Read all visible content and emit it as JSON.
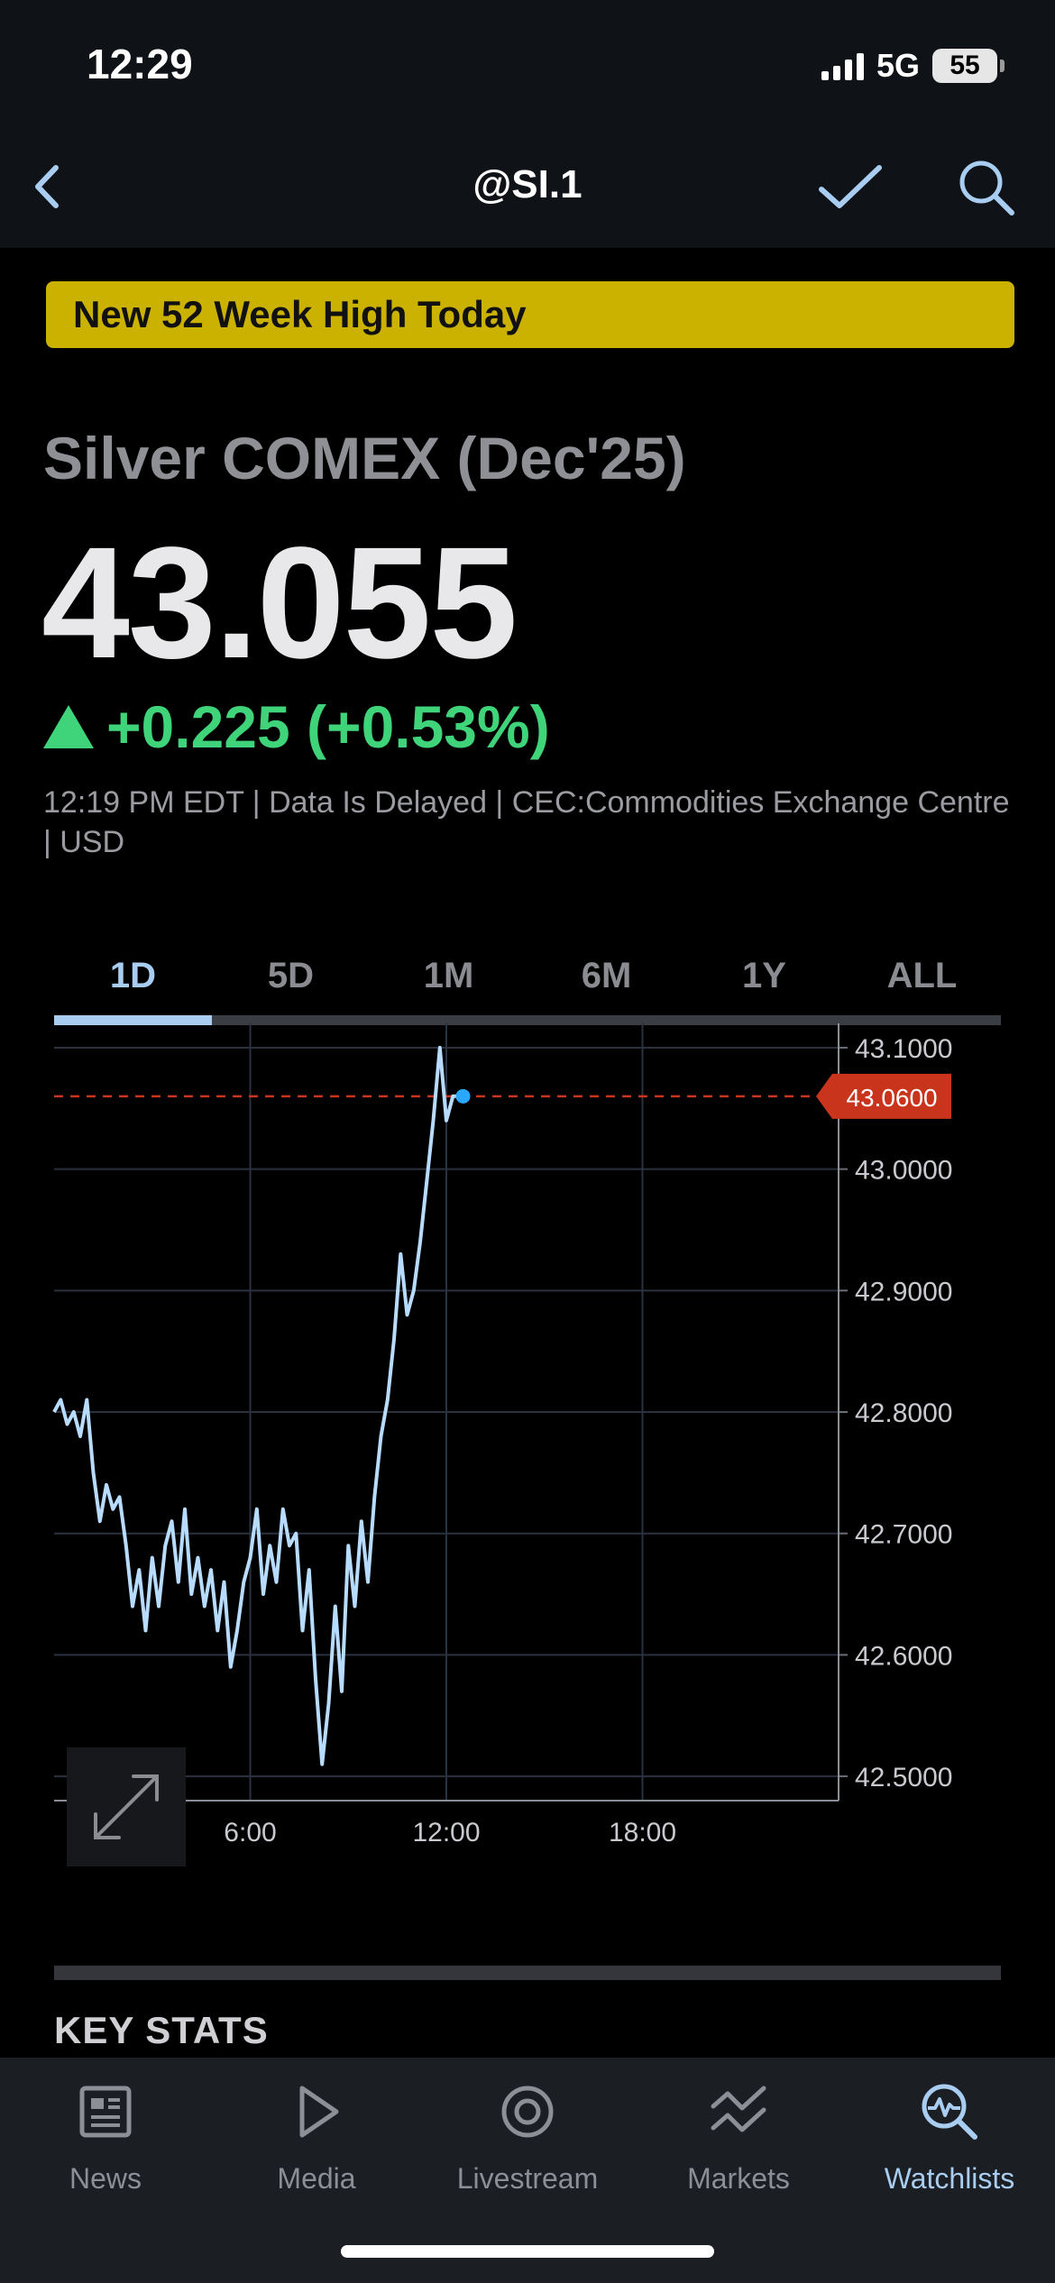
{
  "status": {
    "time": "12:29",
    "network": "5G",
    "battery": "55"
  },
  "nav": {
    "title": "@SI.1"
  },
  "banner": "New 52 Week High Today",
  "instrument": {
    "name": "Silver COMEX (Dec'25)",
    "price": "43.055",
    "change": "+0.225 (+0.53%)",
    "meta": "12:19 PM EDT | Data Is Delayed | CEC:Commodities Exchange Centre | USD"
  },
  "colors": {
    "up": "#3fd37a",
    "accent": "#a8cdf0",
    "price_tag": "#c8351c",
    "banner": "#ccb200"
  },
  "tabs": [
    {
      "label": "1D",
      "active": true
    },
    {
      "label": "5D"
    },
    {
      "label": "1M"
    },
    {
      "label": "6M"
    },
    {
      "label": "1Y"
    },
    {
      "label": "ALL"
    }
  ],
  "chart_data": {
    "type": "line",
    "title": "",
    "xlabel": "",
    "ylabel": "",
    "x_ticks": [
      "6:00",
      "12:00",
      "18:00"
    ],
    "y_ticks": [
      "43.1000",
      "43.0000",
      "42.9000",
      "42.8000",
      "42.7000",
      "42.6000",
      "42.5000"
    ],
    "ylim": [
      42.48,
      43.12
    ],
    "xlim_hours": [
      0,
      24
    ],
    "current_price_label": "43.0600",
    "current_price": 43.06,
    "grid": true,
    "series": [
      {
        "x": [
          0.0,
          0.2,
          0.4,
          0.6,
          0.8,
          1.0,
          1.2,
          1.4,
          1.6,
          1.8,
          2.0,
          2.2,
          2.4,
          2.6,
          2.8,
          3.0,
          3.2,
          3.4,
          3.6,
          3.8,
          4.0,
          4.2,
          4.4,
          4.6,
          4.8,
          5.0,
          5.2,
          5.4,
          5.6,
          5.8,
          6.0,
          6.2,
          6.4,
          6.6,
          6.8,
          7.0,
          7.2,
          7.4,
          7.6,
          7.8,
          8.0,
          8.2,
          8.4,
          8.6,
          8.8,
          9.0,
          9.2,
          9.4,
          9.6,
          9.8,
          10.0,
          10.2,
          10.4,
          10.6,
          10.8,
          11.0,
          11.2,
          11.4,
          11.6,
          11.8,
          12.0,
          12.2,
          12.4
        ],
        "values": [
          42.8,
          42.81,
          42.79,
          42.8,
          42.78,
          42.81,
          42.75,
          42.71,
          42.74,
          42.72,
          42.73,
          42.69,
          42.64,
          42.67,
          42.62,
          42.68,
          42.64,
          42.69,
          42.71,
          42.66,
          42.72,
          42.65,
          42.68,
          42.64,
          42.67,
          42.62,
          42.66,
          42.59,
          42.62,
          42.66,
          42.68,
          42.72,
          42.65,
          42.69,
          42.66,
          42.72,
          42.69,
          42.7,
          42.62,
          42.67,
          42.58,
          42.51,
          42.56,
          42.64,
          42.57,
          42.69,
          42.64,
          42.71,
          42.66,
          42.73,
          42.78,
          42.81,
          42.86,
          42.93,
          42.88,
          42.9,
          42.94,
          42.99,
          43.04,
          43.1,
          43.04,
          43.06,
          43.06
        ]
      }
    ]
  },
  "expand_icon": "expand-diagonal-icon",
  "section": {
    "title": "KEY STATS"
  },
  "tabbar": [
    {
      "label": "News",
      "icon": "newspaper-icon"
    },
    {
      "label": "Media",
      "icon": "play-icon"
    },
    {
      "label": "Livestream",
      "icon": "livestream-icon"
    },
    {
      "label": "Markets",
      "icon": "markets-icon"
    },
    {
      "label": "Watchlists",
      "icon": "watchlists-icon",
      "active": true
    }
  ]
}
